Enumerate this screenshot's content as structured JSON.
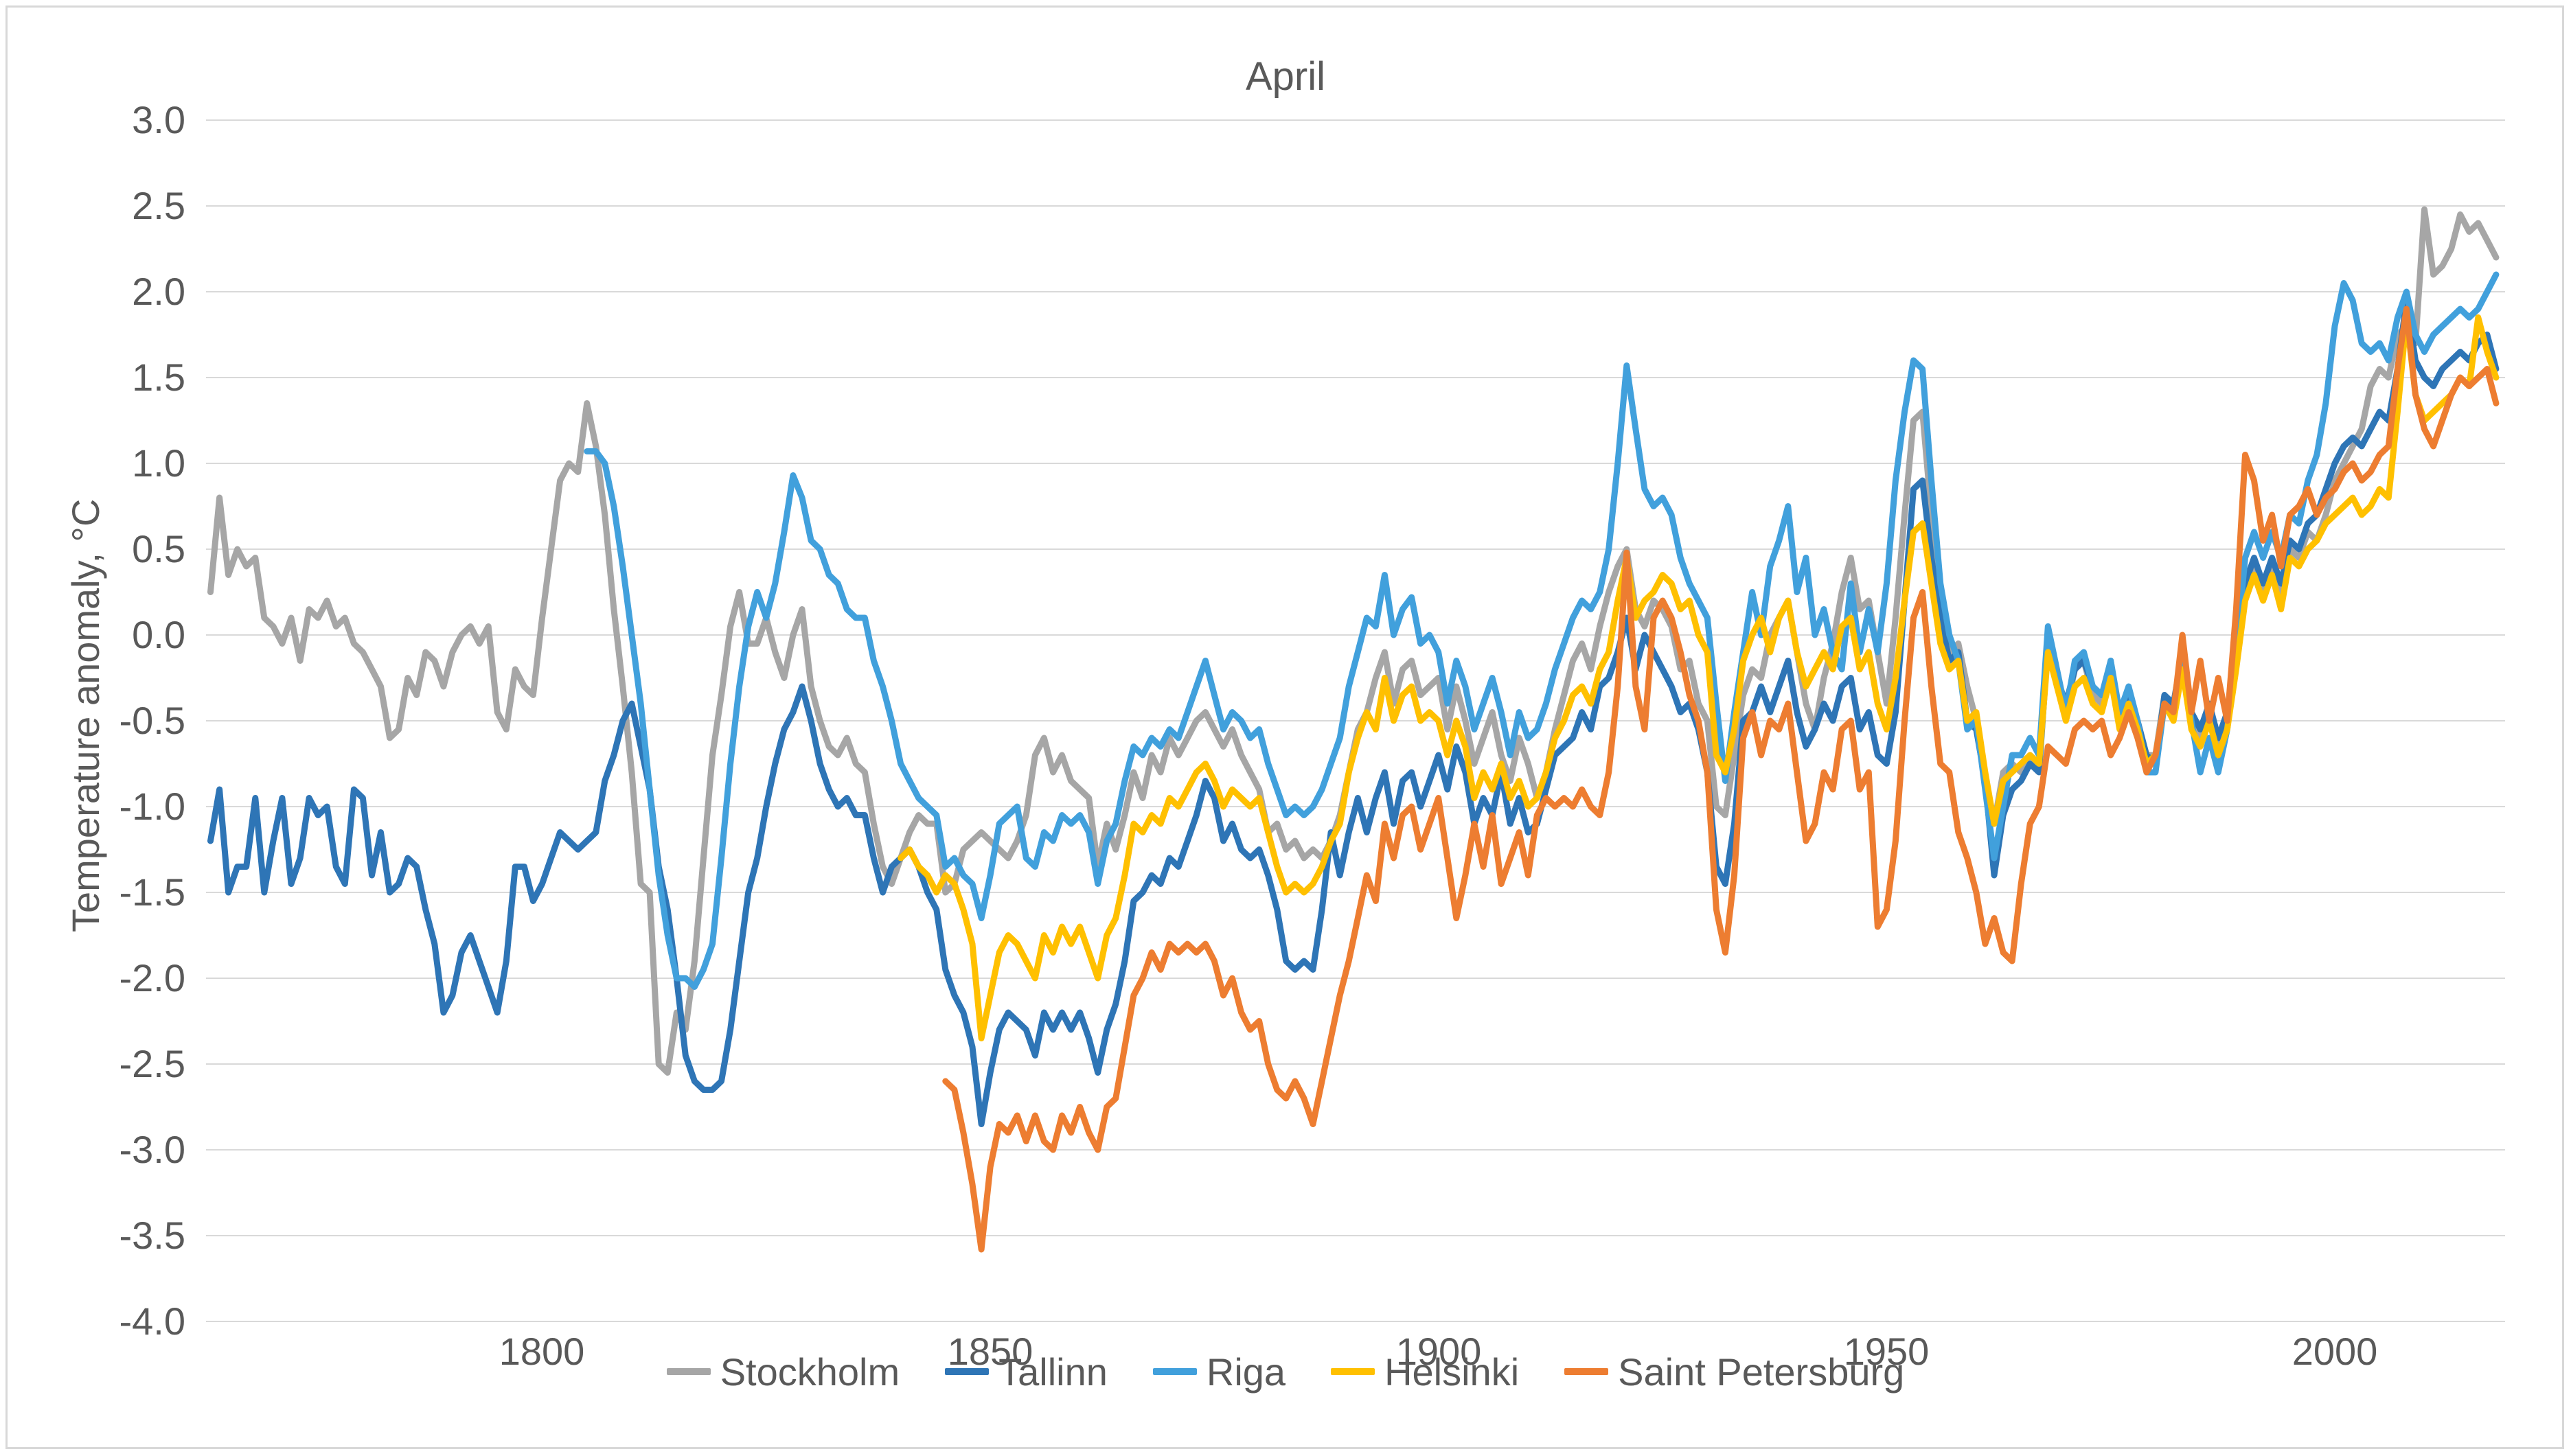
{
  "page": {
    "background": "#ffffff",
    "frame_border_color": "#d8d8d8"
  },
  "chart_data": {
    "type": "line",
    "title": "April",
    "xlabel": "",
    "ylabel": "Temperature anomaly, °C",
    "xlim": [
      1762.5,
      2019
    ],
    "ylim": [
      -4.0,
      3.0
    ],
    "xticks": [
      1800,
      1850,
      1900,
      1950,
      2000
    ],
    "yticks": [
      "3.0",
      "2.5",
      "2.0",
      "1.5",
      "1.0",
      "0.5",
      "0.0",
      "-0.5",
      "-1.0",
      "-1.5",
      "-2.0",
      "-2.5",
      "-3.0",
      "-3.5",
      "-4.0"
    ],
    "grid": "horizontal",
    "grid_color": "#d9d9d9",
    "text_color": "#595959",
    "legend_position": "bottom",
    "line_width": 9,
    "series": [
      {
        "name": "Stockholm",
        "color": "#a6a6a6",
        "start_year": 1763,
        "values": [
          0.25,
          0.8,
          0.35,
          0.5,
          0.4,
          0.45,
          0.1,
          0.05,
          -0.05,
          0.1,
          -0.15,
          0.15,
          0.1,
          0.2,
          0.05,
          0.1,
          -0.05,
          -0.1,
          -0.2,
          -0.3,
          -0.6,
          -0.55,
          -0.25,
          -0.35,
          -0.1,
          -0.15,
          -0.3,
          -0.1,
          0.0,
          0.05,
          -0.05,
          0.05,
          -0.45,
          -0.55,
          -0.2,
          -0.3,
          -0.35,
          0.1,
          0.5,
          0.9,
          1.0,
          0.95,
          1.35,
          1.1,
          0.7,
          0.15,
          -0.3,
          -0.8,
          -1.45,
          -1.5,
          -2.5,
          -2.55,
          -2.2,
          -2.3,
          -1.9,
          -1.3,
          -0.7,
          -0.35,
          0.05,
          0.25,
          -0.05,
          -0.05,
          0.1,
          -0.1,
          -0.25,
          0.0,
          0.15,
          -0.3,
          -0.5,
          -0.65,
          -0.7,
          -0.6,
          -0.75,
          -0.8,
          -1.1,
          -1.35,
          -1.45,
          -1.3,
          -1.15,
          -1.05,
          -1.1,
          -1.1,
          -1.5,
          -1.45,
          -1.25,
          -1.2,
          -1.15,
          -1.2,
          -1.25,
          -1.3,
          -1.2,
          -1.05,
          -0.7,
          -0.6,
          -0.8,
          -0.7,
          -0.85,
          -0.9,
          -0.95,
          -1.35,
          -1.1,
          -1.25,
          -1.05,
          -0.8,
          -0.95,
          -0.7,
          -0.8,
          -0.6,
          -0.7,
          -0.6,
          -0.5,
          -0.45,
          -0.55,
          -0.65,
          -0.55,
          -0.7,
          -0.8,
          -0.9,
          -1.15,
          -1.1,
          -1.25,
          -1.2,
          -1.3,
          -1.25,
          -1.3,
          -1.2,
          -1.05,
          -0.8,
          -0.55,
          -0.45,
          -0.25,
          -0.1,
          -0.4,
          -0.2,
          -0.15,
          -0.35,
          -0.3,
          -0.25,
          -0.55,
          -0.3,
          -0.5,
          -0.75,
          -0.6,
          -0.45,
          -0.7,
          -0.85,
          -0.6,
          -0.75,
          -0.95,
          -0.8,
          -0.55,
          -0.35,
          -0.15,
          -0.05,
          -0.2,
          0.05,
          0.25,
          0.4,
          0.5,
          0.15,
          0.05,
          0.2,
          0.15,
          0.05,
          -0.2,
          -0.15,
          -0.4,
          -0.5,
          -1.0,
          -1.05,
          -0.7,
          -0.35,
          -0.2,
          -0.25,
          0.0,
          0.1,
          0.2,
          -0.1,
          -0.4,
          -0.55,
          -0.25,
          -0.05,
          0.25,
          0.45,
          0.15,
          0.2,
          -0.1,
          -0.4,
          0.1,
          0.7,
          1.25,
          1.3,
          0.7,
          0.15,
          -0.1,
          -0.05,
          -0.3,
          -0.5,
          -0.85,
          -1.1,
          -0.8,
          -0.75,
          -0.8,
          -0.7,
          -0.75,
          -0.05,
          -0.3,
          -0.45,
          -0.2,
          -0.15,
          -0.35,
          -0.4,
          -0.15,
          -0.5,
          -0.35,
          -0.55,
          -0.7,
          -0.7,
          -0.35,
          -0.45,
          -0.15,
          -0.5,
          -0.6,
          -0.45,
          -0.65,
          -0.5,
          -0.15,
          0.25,
          0.4,
          0.25,
          0.4,
          0.2,
          0.5,
          0.45,
          0.6,
          0.55,
          0.7,
          0.9,
          1.0,
          1.1,
          1.2,
          1.45,
          1.55,
          1.5,
          1.75,
          1.8,
          1.7,
          2.48,
          2.1,
          2.15,
          2.25,
          2.45,
          2.35,
          2.4,
          2.3,
          2.2
        ]
      },
      {
        "name": "Tallinn",
        "color": "#2e75b6",
        "start_year": 1763,
        "values": [
          -1.2,
          -0.9,
          -1.5,
          -1.35,
          -1.35,
          -0.95,
          -1.5,
          -1.2,
          -0.95,
          -1.45,
          -1.3,
          -0.95,
          -1.05,
          -1.0,
          -1.35,
          -1.45,
          -0.9,
          -0.95,
          -1.4,
          -1.15,
          -1.5,
          -1.45,
          -1.3,
          -1.35,
          -1.6,
          -1.8,
          -2.2,
          -2.1,
          -1.85,
          -1.75,
          -1.9,
          -2.05,
          -2.2,
          -1.9,
          -1.35,
          -1.35,
          -1.55,
          -1.45,
          -1.3,
          -1.15,
          -1.2,
          -1.25,
          -1.2,
          -1.15,
          -0.85,
          -0.7,
          -0.5,
          -0.4,
          -0.65,
          -0.9,
          -1.35,
          -1.6,
          -2.0,
          -2.45,
          -2.6,
          -2.65,
          -2.65,
          -2.6,
          -2.3,
          -1.9,
          -1.5,
          -1.3,
          -1.0,
          -0.75,
          -0.55,
          -0.45,
          -0.3,
          -0.5,
          -0.75,
          -0.9,
          -1.0,
          -0.95,
          -1.05,
          -1.05,
          -1.3,
          -1.5,
          -1.35,
          -1.3,
          -1.25,
          -1.35,
          -1.5,
          -1.6,
          -1.95,
          -2.1,
          -2.2,
          -2.4,
          -2.85,
          -2.55,
          -2.3,
          -2.2,
          -2.25,
          -2.3,
          -2.45,
          -2.2,
          -2.3,
          -2.2,
          -2.3,
          -2.2,
          -2.35,
          -2.55,
          -2.3,
          -2.15,
          -1.9,
          -1.55,
          -1.5,
          -1.4,
          -1.45,
          -1.3,
          -1.35,
          -1.2,
          -1.05,
          -0.85,
          -0.95,
          -1.2,
          -1.1,
          -1.25,
          -1.3,
          -1.25,
          -1.4,
          -1.6,
          -1.9,
          -1.95,
          -1.9,
          -1.95,
          -1.6,
          -1.15,
          -1.4,
          -1.15,
          -0.95,
          -1.15,
          -0.95,
          -0.8,
          -1.1,
          -0.85,
          -0.8,
          -1.0,
          -0.85,
          -0.7,
          -0.9,
          -0.65,
          -0.8,
          -1.1,
          -0.95,
          -1.05,
          -0.8,
          -1.1,
          -0.95,
          -1.15,
          -1.1,
          -0.9,
          -0.7,
          -0.65,
          -0.6,
          -0.45,
          -0.55,
          -0.3,
          -0.25,
          -0.1,
          0.1,
          -0.2,
          0.0,
          -0.1,
          -0.2,
          -0.3,
          -0.45,
          -0.4,
          -0.55,
          -0.8,
          -1.35,
          -1.45,
          -1.1,
          -0.5,
          -0.45,
          -0.3,
          -0.45,
          -0.3,
          -0.15,
          -0.45,
          -0.65,
          -0.55,
          -0.4,
          -0.5,
          -0.3,
          -0.25,
          -0.55,
          -0.45,
          -0.7,
          -0.75,
          -0.45,
          0.2,
          0.85,
          0.9,
          0.45,
          0.1,
          -0.15,
          -0.1,
          -0.5,
          -0.55,
          -0.85,
          -1.4,
          -1.05,
          -0.9,
          -0.85,
          -0.75,
          -0.8,
          -0.05,
          -0.25,
          -0.4,
          -0.2,
          -0.15,
          -0.3,
          -0.35,
          -0.2,
          -0.45,
          -0.35,
          -0.5,
          -0.7,
          -0.75,
          -0.35,
          -0.4,
          -0.1,
          -0.45,
          -0.55,
          -0.4,
          -0.6,
          -0.45,
          -0.1,
          0.3,
          0.45,
          0.3,
          0.45,
          0.3,
          0.55,
          0.5,
          0.65,
          0.7,
          0.85,
          1.0,
          1.1,
          1.15,
          1.1,
          1.2,
          1.3,
          1.25,
          1.55,
          1.95,
          1.6,
          1.5,
          1.45,
          1.55,
          1.6,
          1.65,
          1.6,
          1.7,
          1.75,
          1.55
        ]
      },
      {
        "name": "Riga",
        "color": "#41a0dc",
        "start_year": 1805,
        "values": [
          1.07,
          1.07,
          1.0,
          0.75,
          0.4,
          0.0,
          -0.4,
          -0.9,
          -1.4,
          -1.75,
          -2.0,
          -2.0,
          -2.05,
          -1.95,
          -1.8,
          -1.3,
          -0.75,
          -0.3,
          0.05,
          0.25,
          0.1,
          0.3,
          0.6,
          0.93,
          0.8,
          0.55,
          0.5,
          0.35,
          0.3,
          0.15,
          0.1,
          0.1,
          -0.15,
          -0.3,
          -0.5,
          -0.75,
          -0.85,
          -0.95,
          -1.0,
          -1.05,
          -1.35,
          -1.3,
          -1.4,
          -1.45,
          -1.65,
          -1.4,
          -1.1,
          -1.05,
          -1.0,
          -1.3,
          -1.35,
          -1.15,
          -1.2,
          -1.05,
          -1.1,
          -1.05,
          -1.15,
          -1.45,
          -1.2,
          -1.1,
          -0.85,
          -0.65,
          -0.7,
          -0.6,
          -0.65,
          -0.55,
          -0.6,
          -0.45,
          -0.3,
          -0.15,
          -0.35,
          -0.55,
          -0.45,
          -0.5,
          -0.6,
          -0.55,
          -0.75,
          -0.9,
          -1.05,
          -1.0,
          -1.05,
          -1.0,
          -0.9,
          -0.75,
          -0.6,
          -0.3,
          -0.1,
          0.1,
          0.05,
          0.35,
          0.0,
          0.15,
          0.22,
          -0.05,
          0.0,
          -0.1,
          -0.4,
          -0.15,
          -0.3,
          -0.55,
          -0.4,
          -0.25,
          -0.45,
          -0.7,
          -0.45,
          -0.6,
          -0.55,
          -0.4,
          -0.2,
          -0.05,
          0.1,
          0.2,
          0.15,
          0.25,
          0.5,
          1.0,
          1.57,
          1.2,
          0.85,
          0.75,
          0.8,
          0.7,
          0.45,
          0.3,
          0.2,
          0.1,
          -0.4,
          -0.85,
          -0.45,
          -0.1,
          0.25,
          0.0,
          0.4,
          0.55,
          0.75,
          0.25,
          0.45,
          0.0,
          0.15,
          -0.1,
          -0.2,
          0.3,
          -0.1,
          0.15,
          -0.1,
          0.3,
          0.9,
          1.3,
          1.6,
          1.55,
          0.9,
          0.3,
          0.0,
          -0.15,
          -0.55,
          -0.5,
          -0.9,
          -1.3,
          -1.0,
          -0.7,
          -0.7,
          -0.6,
          -0.7,
          0.05,
          -0.2,
          -0.45,
          -0.15,
          -0.1,
          -0.3,
          -0.35,
          -0.15,
          -0.45,
          -0.3,
          -0.5,
          -0.8,
          -0.8,
          -0.4,
          -0.45,
          -0.1,
          -0.5,
          -0.8,
          -0.6,
          -0.8,
          -0.55,
          -0.1,
          0.45,
          0.6,
          0.45,
          0.6,
          0.45,
          0.7,
          0.65,
          0.9,
          1.05,
          1.35,
          1.8,
          2.05,
          1.95,
          1.7,
          1.65,
          1.7,
          1.6,
          1.85,
          2.0,
          1.75,
          1.65,
          1.75,
          1.8,
          1.85,
          1.9,
          1.85,
          1.9,
          2.0,
          2.1
        ]
      },
      {
        "name": "Helsinki",
        "color": "#ffc000",
        "start_year": 1840,
        "values": [
          -1.3,
          -1.25,
          -1.35,
          -1.4,
          -1.5,
          -1.4,
          -1.45,
          -1.6,
          -1.8,
          -2.35,
          -2.1,
          -1.85,
          -1.75,
          -1.8,
          -1.9,
          -2.0,
          -1.75,
          -1.85,
          -1.7,
          -1.8,
          -1.7,
          -1.85,
          -2.0,
          -1.75,
          -1.65,
          -1.4,
          -1.1,
          -1.15,
          -1.05,
          -1.1,
          -0.95,
          -1.0,
          -0.9,
          -0.8,
          -0.75,
          -0.85,
          -1.0,
          -0.9,
          -0.95,
          -1.0,
          -0.95,
          -1.15,
          -1.35,
          -1.5,
          -1.45,
          -1.5,
          -1.45,
          -1.35,
          -1.2,
          -1.1,
          -0.8,
          -0.6,
          -0.45,
          -0.55,
          -0.25,
          -0.5,
          -0.35,
          -0.3,
          -0.5,
          -0.45,
          -0.5,
          -0.7,
          -0.5,
          -0.65,
          -0.95,
          -0.8,
          -0.9,
          -0.75,
          -0.95,
          -0.85,
          -1.0,
          -0.95,
          -0.8,
          -0.6,
          -0.5,
          -0.35,
          -0.3,
          -0.4,
          -0.2,
          -0.1,
          0.2,
          0.45,
          0.1,
          0.2,
          0.25,
          0.35,
          0.3,
          0.15,
          0.2,
          0.0,
          -0.1,
          -0.7,
          -0.8,
          -0.55,
          -0.15,
          0.0,
          0.1,
          -0.1,
          0.1,
          0.2,
          -0.1,
          -0.3,
          -0.2,
          -0.1,
          -0.2,
          0.05,
          0.1,
          -0.2,
          -0.1,
          -0.4,
          -0.55,
          -0.25,
          0.2,
          0.6,
          0.65,
          0.3,
          -0.05,
          -0.2,
          -0.15,
          -0.5,
          -0.45,
          -0.8,
          -1.1,
          -0.85,
          -0.8,
          -0.75,
          -0.7,
          -0.75,
          -0.1,
          -0.3,
          -0.5,
          -0.3,
          -0.25,
          -0.4,
          -0.45,
          -0.25,
          -0.55,
          -0.4,
          -0.55,
          -0.75,
          -0.7,
          -0.4,
          -0.5,
          -0.2,
          -0.55,
          -0.65,
          -0.5,
          -0.7,
          -0.55,
          -0.2,
          0.2,
          0.35,
          0.2,
          0.35,
          0.15,
          0.45,
          0.4,
          0.5,
          0.55,
          0.65,
          0.7,
          0.75,
          0.8,
          0.7,
          0.75,
          0.85,
          0.8,
          1.3,
          1.85,
          1.4,
          1.25,
          1.3,
          1.35,
          1.4,
          1.5,
          1.45,
          1.85,
          1.65,
          1.5
        ]
      },
      {
        "name": "Saint Petersburg",
        "color": "#ed7d31",
        "start_year": 1845,
        "values": [
          -2.6,
          -2.65,
          -2.9,
          -3.2,
          -3.58,
          -3.1,
          -2.85,
          -2.9,
          -2.8,
          -2.95,
          -2.8,
          -2.95,
          -3.0,
          -2.8,
          -2.9,
          -2.75,
          -2.9,
          -3.0,
          -2.75,
          -2.7,
          -2.4,
          -2.1,
          -2.0,
          -1.85,
          -1.95,
          -1.8,
          -1.85,
          -1.8,
          -1.85,
          -1.8,
          -1.9,
          -2.1,
          -2.0,
          -2.2,
          -2.3,
          -2.25,
          -2.5,
          -2.65,
          -2.7,
          -2.6,
          -2.7,
          -2.85,
          -2.6,
          -2.35,
          -2.1,
          -1.9,
          -1.65,
          -1.4,
          -1.55,
          -1.1,
          -1.3,
          -1.05,
          -1.0,
          -1.25,
          -1.1,
          -0.95,
          -1.3,
          -1.65,
          -1.4,
          -1.1,
          -1.35,
          -1.05,
          -1.45,
          -1.3,
          -1.15,
          -1.4,
          -1.05,
          -0.95,
          -1.0,
          -0.95,
          -1.0,
          -0.9,
          -1.0,
          -1.05,
          -0.8,
          -0.3,
          0.48,
          -0.3,
          -0.55,
          0.1,
          0.2,
          0.1,
          -0.1,
          -0.35,
          -0.5,
          -0.8,
          -1.6,
          -1.85,
          -1.4,
          -0.6,
          -0.45,
          -0.7,
          -0.5,
          -0.55,
          -0.4,
          -0.8,
          -1.2,
          -1.1,
          -0.8,
          -0.9,
          -0.55,
          -0.5,
          -0.9,
          -0.8,
          -1.7,
          -1.6,
          -1.2,
          -0.5,
          0.1,
          0.25,
          -0.3,
          -0.75,
          -0.8,
          -1.15,
          -1.3,
          -1.5,
          -1.8,
          -1.65,
          -1.85,
          -1.9,
          -1.45,
          -1.1,
          -1.0,
          -0.65,
          -0.7,
          -0.75,
          -0.55,
          -0.5,
          -0.55,
          -0.5,
          -0.7,
          -0.6,
          -0.45,
          -0.6,
          -0.8,
          -0.7,
          -0.4,
          -0.45,
          0.0,
          -0.45,
          -0.15,
          -0.5,
          -0.25,
          -0.5,
          0.15,
          1.05,
          0.9,
          0.55,
          0.7,
          0.4,
          0.7,
          0.75,
          0.85,
          0.7,
          0.8,
          0.85,
          0.95,
          1.0,
          0.9,
          0.95,
          1.05,
          1.1,
          1.55,
          1.9,
          1.4,
          1.2,
          1.1,
          1.25,
          1.4,
          1.5,
          1.45,
          1.5,
          1.55,
          1.35
        ]
      }
    ]
  }
}
